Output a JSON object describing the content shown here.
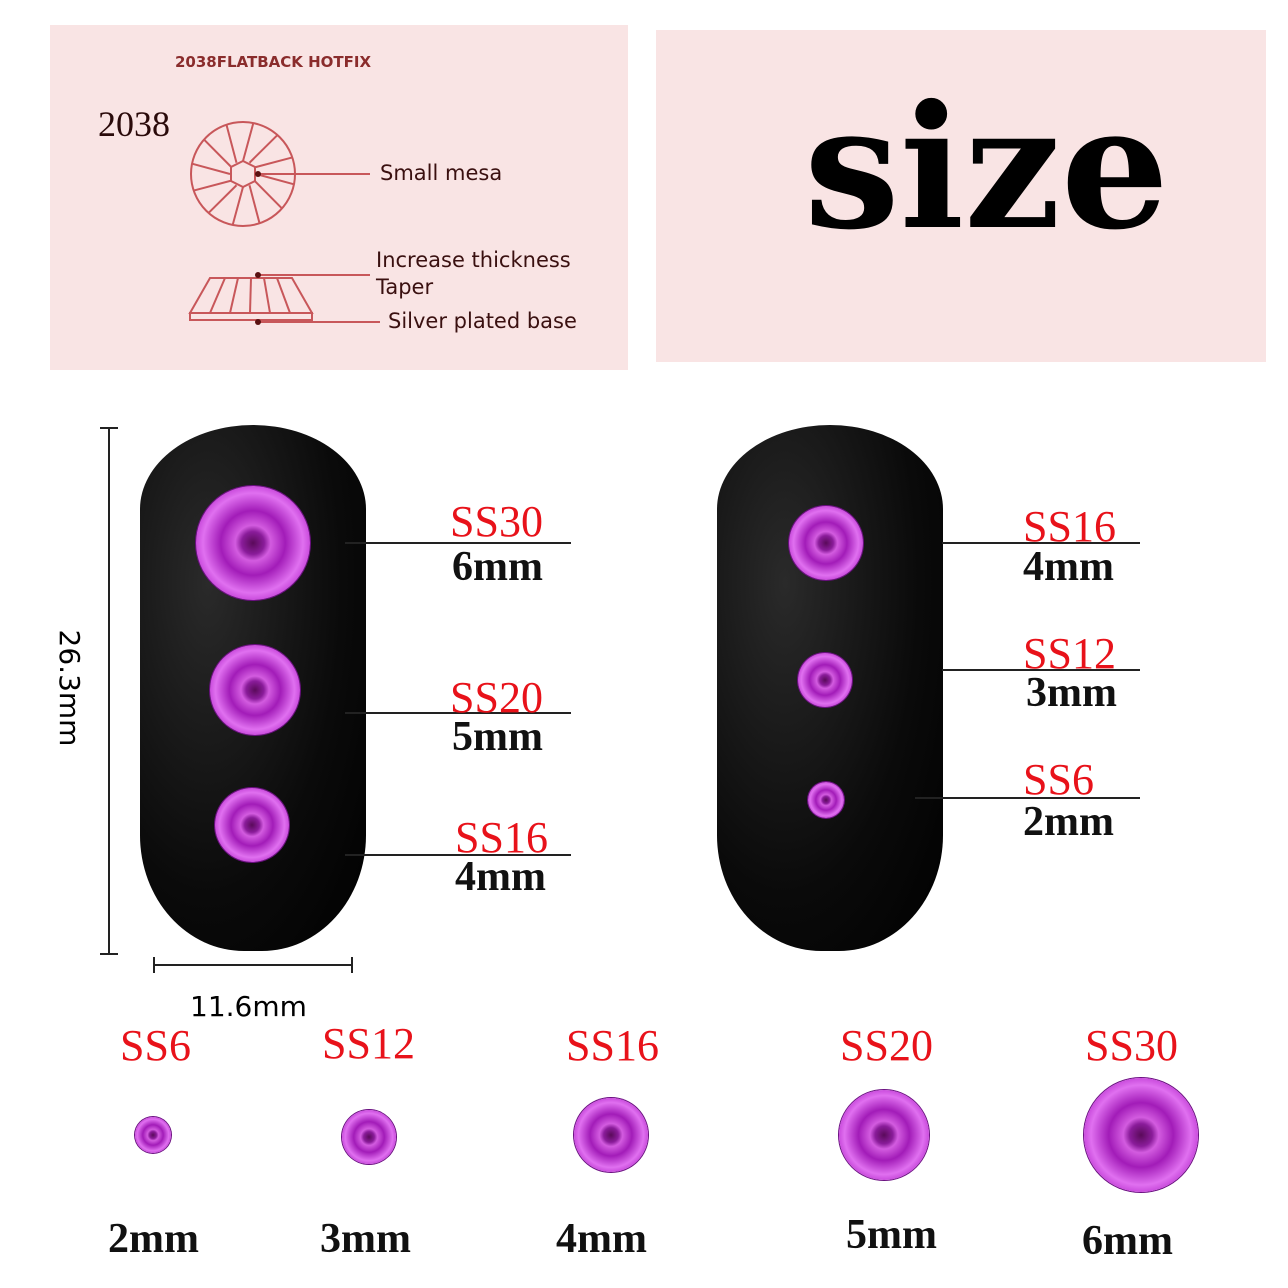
{
  "diagram": {
    "header": "2038FLATBACK HOTFIX",
    "model": "2038",
    "labels": [
      "Small mesa",
      "Increase thickness",
      "Taper",
      "Silver plated base"
    ],
    "line_color": "#c8575a"
  },
  "title": "size",
  "dimensions": {
    "height": "26.3mm",
    "width": "11.6mm"
  },
  "left_nail": [
    {
      "code": "SS30",
      "size": "6mm"
    },
    {
      "code": "SS20",
      "size": "5mm"
    },
    {
      "code": "SS16",
      "size": "4mm"
    }
  ],
  "right_nail": [
    {
      "code": "SS16",
      "size": "4mm"
    },
    {
      "code": "SS12",
      "size": "3mm"
    },
    {
      "code": "SS6",
      "size": "2mm"
    }
  ],
  "bottom_row": [
    {
      "code": "SS6",
      "size": "2mm"
    },
    {
      "code": "SS12",
      "size": "3mm"
    },
    {
      "code": "SS16",
      "size": "4mm"
    },
    {
      "code": "SS20",
      "size": "5mm"
    },
    {
      "code": "SS30",
      "size": "6mm"
    }
  ],
  "colors": {
    "code_red": "#e8121a",
    "gem_purple": "#b226c8",
    "panel_pink": "#f9e4e4"
  }
}
